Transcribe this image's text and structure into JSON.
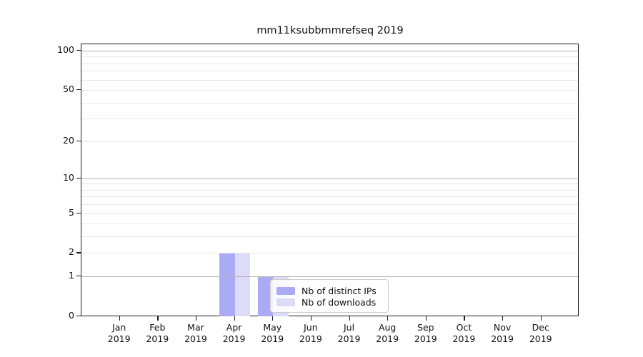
{
  "chart_data": {
    "type": "bar",
    "title": "mm11ksubbmmrefseq 2019",
    "categories": [
      "Jan",
      "Feb",
      "Mar",
      "Apr",
      "May",
      "Jun",
      "Jul",
      "Aug",
      "Sep",
      "Oct",
      "Nov",
      "Dec"
    ],
    "year_label": "2019",
    "series": [
      {
        "name": "Nb of distinct IPs",
        "color": "#aaaaf5",
        "values": [
          0,
          0,
          0,
          2,
          1,
          0,
          0,
          0,
          0,
          0,
          0,
          0
        ]
      },
      {
        "name": "Nb of downloads",
        "color": "#dcdcf9",
        "values": [
          0,
          0,
          0,
          2,
          1,
          0,
          0,
          0,
          0,
          0,
          0,
          0
        ]
      }
    ],
    "yscale": "log1p",
    "ylim": [
      0,
      112
    ],
    "yticks": [
      0,
      1,
      2,
      5,
      10,
      20,
      50,
      100
    ],
    "ygrid_major": [
      1,
      10,
      100
    ],
    "ygrid_minor": [
      2,
      3,
      4,
      5,
      6,
      7,
      8,
      9,
      20,
      30,
      40,
      50,
      60,
      70,
      80,
      90
    ],
    "grid": true,
    "legend_position": "lower center"
  }
}
